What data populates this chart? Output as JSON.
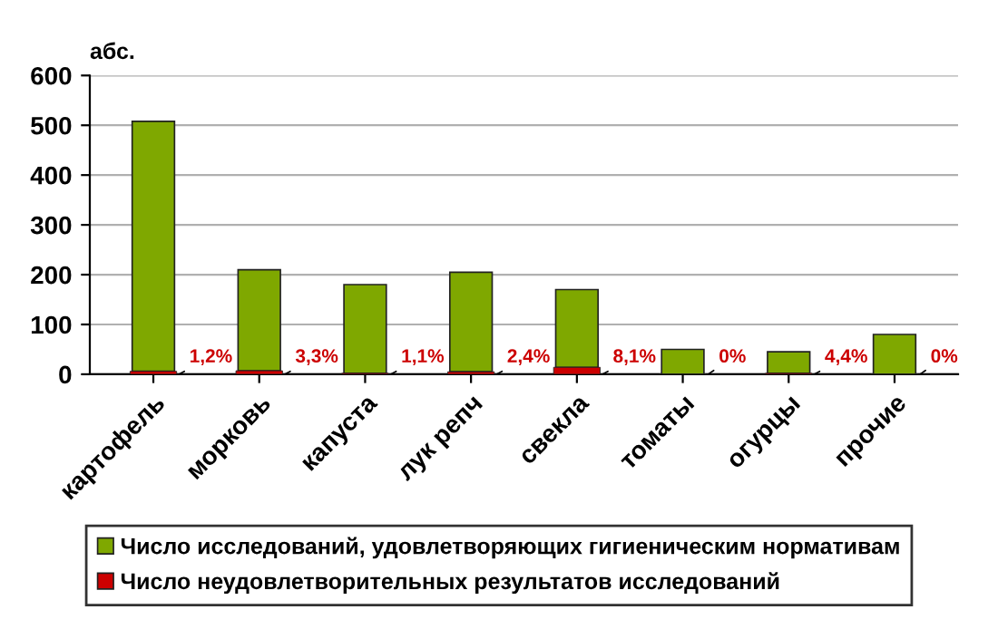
{
  "chart_data": {
    "type": "bar",
    "stacked": true,
    "ylabel": "абс.",
    "categories": [
      "картофель",
      "морковь",
      "капуста",
      "лук репч",
      "свекла",
      "томаты",
      "огурцы",
      "прочие"
    ],
    "series": [
      {
        "name": "Число неудовлетворительных результатов исследований",
        "color": "#cc0000",
        "values": [
          6,
          7,
          2,
          5,
          14,
          0,
          2,
          0
        ]
      },
      {
        "name": "Число исследований, удовлетворяющих гигиеническим нормативам",
        "color": "#7fa800",
        "values": [
          502,
          203,
          178,
          200,
          156,
          50,
          43,
          80
        ]
      }
    ],
    "ylim": [
      0,
      600
    ],
    "yticks": [
      0,
      100,
      200,
      300,
      400,
      500,
      600
    ],
    "grid": "y",
    "legend": "bottom",
    "annotations": [
      {
        "text": "1,2%",
        "x": "картофель",
        "y": 0
      },
      {
        "text": "3,3%",
        "x": "морковь",
        "y": 0
      },
      {
        "text": "1,1%",
        "x": "капуста",
        "y": 0
      },
      {
        "text": "2,4%",
        "x": "лук репч",
        "y": 0
      },
      {
        "text": "8,1%",
        "x": "свекла",
        "y": 0
      },
      {
        "text": "0%",
        "x": "томаты",
        "y": 0
      },
      {
        "text": "4,4%",
        "x": "огурцы",
        "y": 0
      },
      {
        "text": "0%",
        "x": "прочие",
        "y": 0
      }
    ]
  }
}
